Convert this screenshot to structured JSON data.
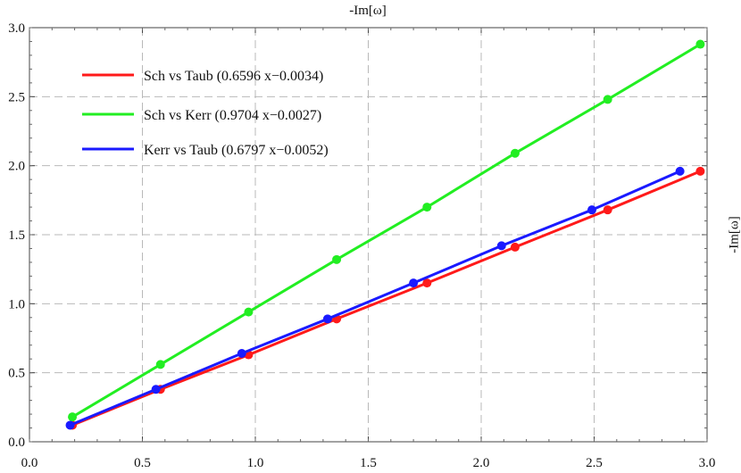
{
  "chart_data": {
    "type": "line",
    "title": "",
    "xlabel": "-Im[ω]",
    "ylabel": "-Im[ω]",
    "xlim": [
      0.0,
      3.0
    ],
    "ylim": [
      0.0,
      3.0
    ],
    "xticks": [
      0.0,
      0.5,
      1.0,
      1.5,
      2.0,
      2.5,
      3.0
    ],
    "yticks": [
      0.0,
      0.5,
      1.0,
      1.5,
      2.0,
      2.5,
      3.0
    ],
    "xtick_labels": [
      "0.0",
      "0.5",
      "1.0",
      "1.5",
      "2.0",
      "2.5",
      "3.0"
    ],
    "ytick_labels": [
      "0.0",
      "0.5",
      "1.0",
      "1.5",
      "2.0",
      "2.5",
      "3.0"
    ],
    "grid": true,
    "legend_position": "top-left",
    "series": [
      {
        "name": "Sch vs Taub (0.6596 x−0.0034)",
        "color": "#ff1a1a",
        "points": [
          [
            0.19,
            0.12
          ],
          [
            0.58,
            0.38
          ],
          [
            0.97,
            0.63
          ],
          [
            1.36,
            0.89
          ],
          [
            1.76,
            1.15
          ],
          [
            2.15,
            1.41
          ],
          [
            2.56,
            1.68
          ],
          [
            2.97,
            1.96
          ]
        ]
      },
      {
        "name": "Sch vs Kerr (0.9704 x−0.0027)",
        "color": "#22ee22",
        "points": [
          [
            0.19,
            0.18
          ],
          [
            0.58,
            0.56
          ],
          [
            0.97,
            0.94
          ],
          [
            1.36,
            1.32
          ],
          [
            1.76,
            1.7
          ],
          [
            2.15,
            2.09
          ],
          [
            2.56,
            2.48
          ],
          [
            2.97,
            2.88
          ]
        ]
      },
      {
        "name": "Kerr vs Taub (0.6797 x−0.0052)",
        "color": "#1a1aff",
        "points": [
          [
            0.18,
            0.12
          ],
          [
            0.56,
            0.38
          ],
          [
            0.94,
            0.64
          ],
          [
            1.32,
            0.89
          ],
          [
            1.7,
            1.15
          ],
          [
            2.09,
            1.42
          ],
          [
            2.49,
            1.68
          ],
          [
            2.88,
            1.96
          ]
        ]
      }
    ]
  }
}
